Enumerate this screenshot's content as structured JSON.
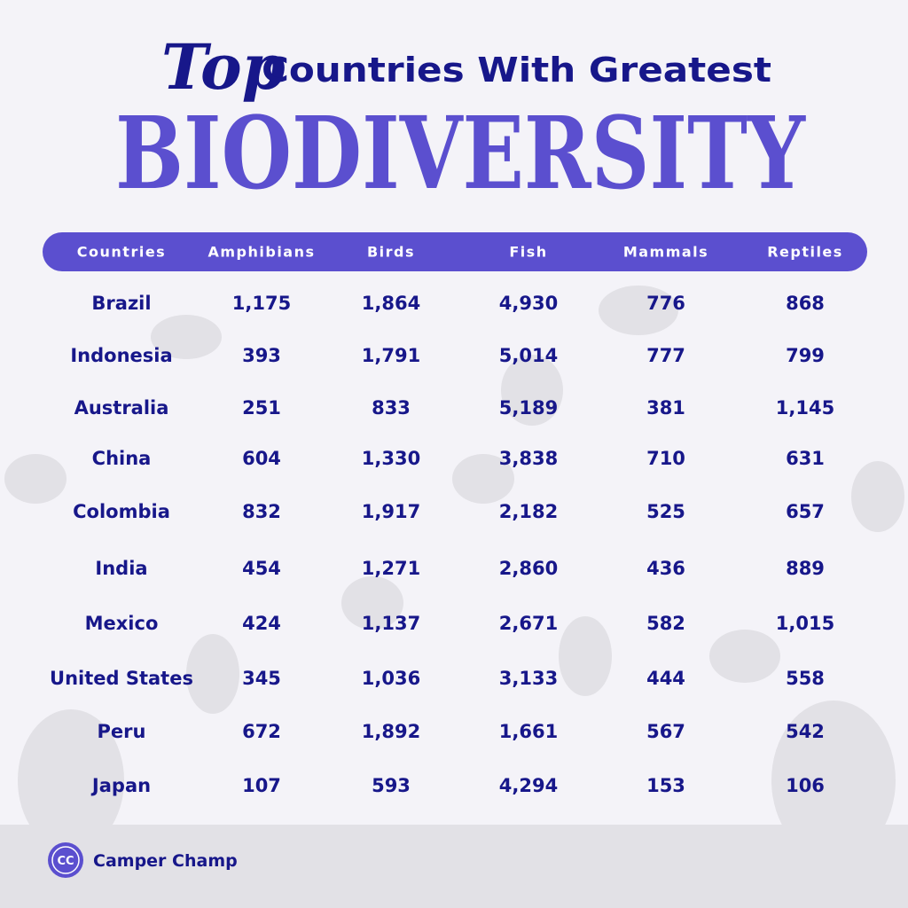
{
  "header": {
    "title_script": "Top",
    "title_line": "Countries With Greatest",
    "title_big": "BIODIVERSITY"
  },
  "table": {
    "columns": [
      "Countries",
      "Amphibians",
      "Birds",
      "Fish",
      "Mammals",
      "Reptiles"
    ],
    "rows": [
      [
        "Brazil",
        "1,175",
        "1,864",
        "4,930",
        "776",
        "868"
      ],
      [
        "Indonesia",
        "393",
        "1,791",
        "5,014",
        "777",
        "799"
      ],
      [
        "Australia",
        "251",
        "833",
        "5,189",
        "381",
        "1,145"
      ],
      [
        "China",
        "604",
        "1,330",
        "3,838",
        "710",
        "631"
      ],
      [
        "Colombia",
        "832",
        "1,917",
        "2,182",
        "525",
        "657"
      ],
      [
        "India",
        "454",
        "1,271",
        "2,860",
        "436",
        "889"
      ],
      [
        "Mexico",
        "424",
        "1,137",
        "2,671",
        "582",
        "1,015"
      ],
      [
        "United States",
        "345",
        "1,036",
        "3,133",
        "444",
        "558"
      ],
      [
        "Peru",
        "672",
        "1,892",
        "1,661",
        "567",
        "542"
      ],
      [
        "Japan",
        "107",
        "593",
        "4,294",
        "153",
        "106"
      ]
    ]
  },
  "footer": {
    "logo": "CC",
    "brand": "Camper Champ"
  }
}
